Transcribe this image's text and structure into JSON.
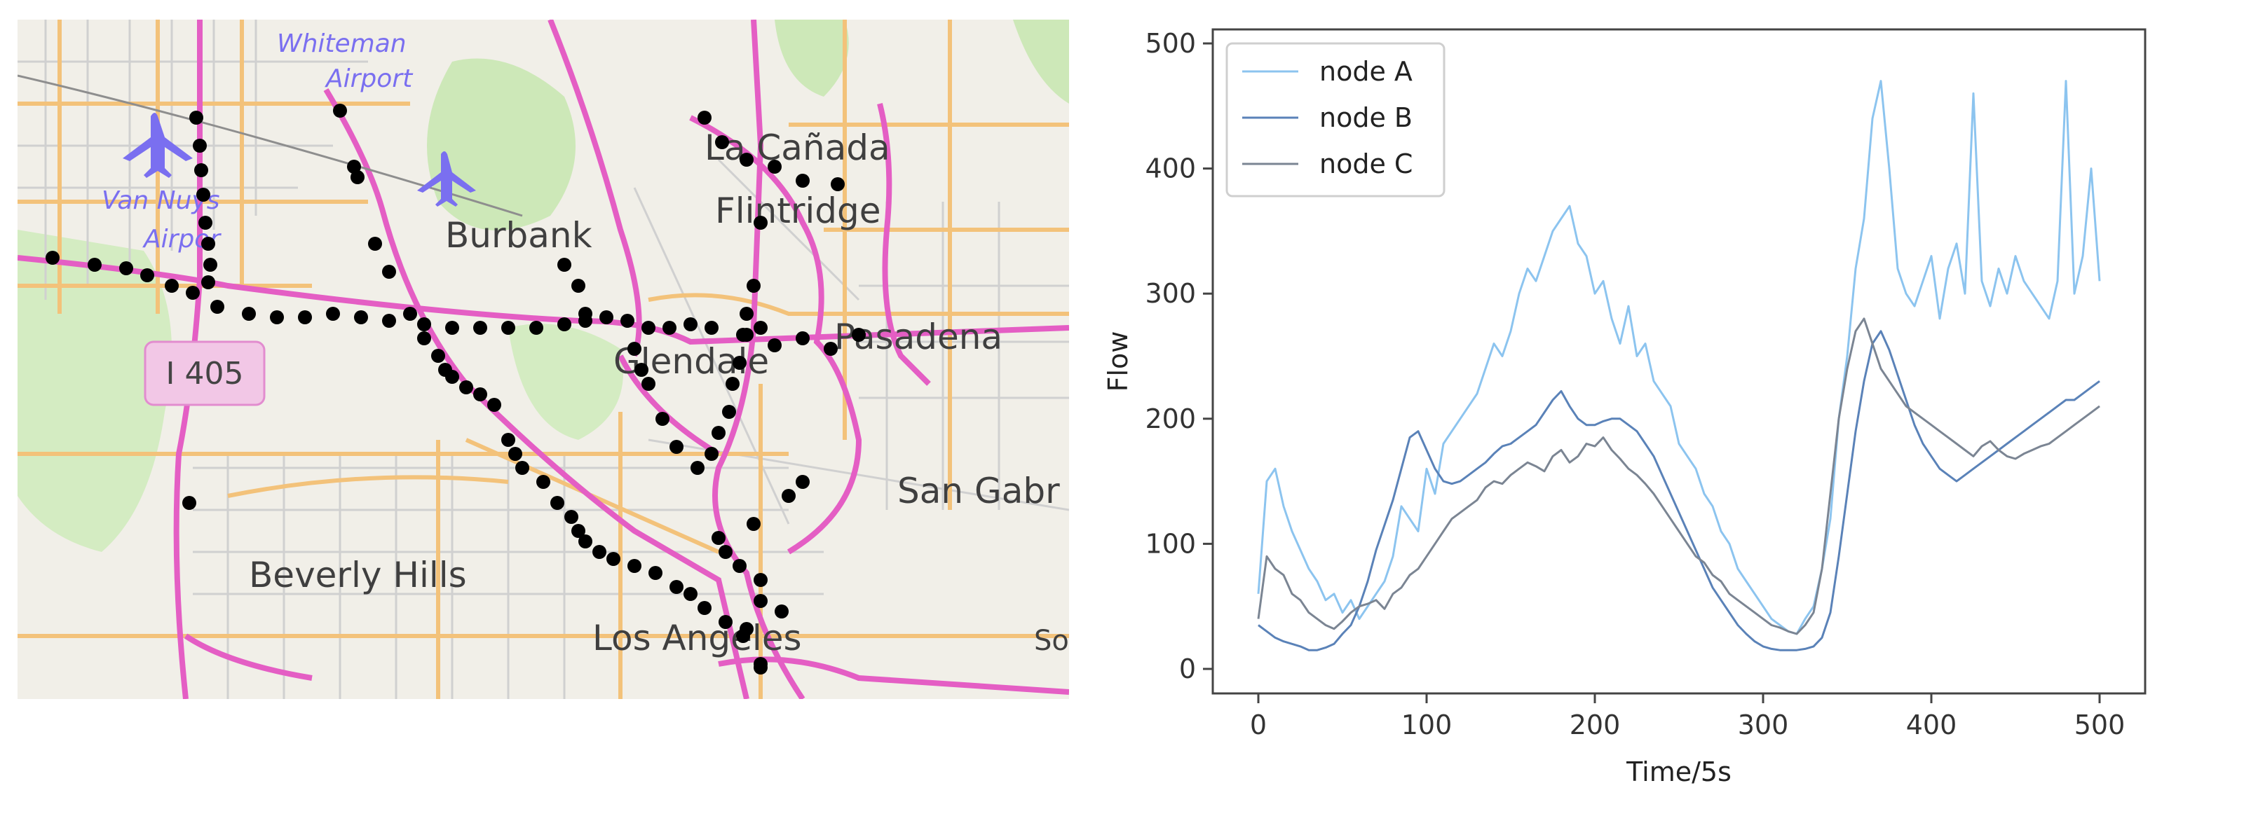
{
  "map": {
    "labels": {
      "whiteman": "Whiteman",
      "airport": "Airport",
      "van_nuys": "Van Nuys",
      "airpor": "Airpor",
      "burbank": "Burbank",
      "la_canada": "La Cañada",
      "flintridge": "Flintridge",
      "glendale": "Glendale",
      "pasadena": "Pasadena",
      "san_gabr": "San Gabr",
      "beverly_hills": "Beverly Hills",
      "los_angeles": "Los Angeles",
      "so": "So",
      "shield": "I 405"
    },
    "colors": {
      "background": "#f1efe8",
      "freeway": "#e45ec4",
      "major_road": "#f3c27a",
      "minor_road": "#cfcfcf",
      "park": "#cde8b8",
      "label_text": "#3f3f3f",
      "airport_text": "#7a6ff0",
      "node": "#000000"
    }
  },
  "chart_data": {
    "type": "line",
    "xlabel": "Time/5s",
    "ylabel": "Flow",
    "xlim": [
      0,
      500
    ],
    "ylim": [
      0,
      500
    ],
    "xticks": [
      0,
      100,
      200,
      300,
      400,
      500
    ],
    "yticks": [
      0,
      100,
      200,
      300,
      400,
      500
    ],
    "legend_position": "top-left",
    "series": [
      {
        "name": "node A",
        "color": "#8cc4ef",
        "x": [
          0,
          5,
          10,
          15,
          20,
          25,
          30,
          35,
          40,
          45,
          50,
          55,
          60,
          65,
          70,
          75,
          80,
          85,
          90,
          95,
          100,
          105,
          110,
          115,
          120,
          125,
          130,
          135,
          140,
          145,
          150,
          155,
          160,
          165,
          170,
          175,
          180,
          185,
          190,
          195,
          200,
          205,
          210,
          215,
          220,
          225,
          230,
          235,
          240,
          245,
          250,
          255,
          260,
          265,
          270,
          275,
          280,
          285,
          290,
          295,
          300,
          305,
          310,
          315,
          320,
          325,
          330,
          335,
          340,
          345,
          350,
          355,
          360,
          365,
          370,
          375,
          380,
          385,
          390,
          395,
          400,
          405,
          410,
          415,
          420,
          425,
          430,
          435,
          440,
          445,
          450,
          455,
          460,
          465,
          470,
          475,
          480,
          485,
          490,
          495,
          500
        ],
        "values": [
          60,
          150,
          160,
          130,
          110,
          95,
          80,
          70,
          55,
          60,
          45,
          55,
          40,
          50,
          60,
          70,
          90,
          130,
          120,
          110,
          160,
          140,
          180,
          190,
          200,
          210,
          220,
          240,
          260,
          250,
          270,
          300,
          320,
          310,
          330,
          350,
          360,
          370,
          340,
          330,
          300,
          310,
          280,
          260,
          290,
          250,
          260,
          230,
          220,
          210,
          180,
          170,
          160,
          140,
          130,
          110,
          100,
          80,
          70,
          60,
          50,
          40,
          35,
          30,
          28,
          40,
          50,
          80,
          120,
          200,
          250,
          320,
          360,
          440,
          470,
          400,
          320,
          300,
          290,
          310,
          330,
          280,
          320,
          340,
          300,
          460,
          310,
          290,
          320,
          300,
          330,
          310,
          300,
          290,
          280,
          310,
          470,
          300,
          330,
          400,
          310
        ]
      },
      {
        "name": "node B",
        "color": "#5a82b8",
        "x": [
          0,
          5,
          10,
          15,
          20,
          25,
          30,
          35,
          40,
          45,
          50,
          55,
          60,
          65,
          70,
          75,
          80,
          85,
          90,
          95,
          100,
          105,
          110,
          115,
          120,
          125,
          130,
          135,
          140,
          145,
          150,
          155,
          160,
          165,
          170,
          175,
          180,
          185,
          190,
          195,
          200,
          205,
          210,
          215,
          220,
          225,
          230,
          235,
          240,
          245,
          250,
          255,
          260,
          265,
          270,
          275,
          280,
          285,
          290,
          295,
          300,
          305,
          310,
          315,
          320,
          325,
          330,
          335,
          340,
          345,
          350,
          355,
          360,
          365,
          370,
          375,
          380,
          385,
          390,
          395,
          400,
          405,
          410,
          415,
          420,
          425,
          430,
          435,
          440,
          445,
          450,
          455,
          460,
          465,
          470,
          475,
          480,
          485,
          490,
          495,
          500
        ],
        "values": [
          35,
          30,
          25,
          22,
          20,
          18,
          15,
          15,
          17,
          20,
          28,
          35,
          50,
          70,
          95,
          115,
          135,
          160,
          185,
          190,
          175,
          160,
          150,
          148,
          150,
          155,
          160,
          165,
          172,
          178,
          180,
          185,
          190,
          195,
          205,
          215,
          222,
          210,
          200,
          195,
          195,
          198,
          200,
          200,
          195,
          190,
          180,
          170,
          155,
          140,
          125,
          110,
          95,
          80,
          65,
          55,
          45,
          35,
          28,
          22,
          18,
          16,
          15,
          15,
          15,
          16,
          18,
          25,
          45,
          90,
          140,
          190,
          230,
          260,
          270,
          255,
          235,
          215,
          195,
          180,
          170,
          160,
          155,
          150,
          155,
          160,
          165,
          170,
          175,
          180,
          185,
          190,
          195,
          200,
          205,
          210,
          215,
          215,
          220,
          225,
          230
        ]
      },
      {
        "name": "node C",
        "color": "#7b8593",
        "x": [
          0,
          5,
          10,
          15,
          20,
          25,
          30,
          35,
          40,
          45,
          50,
          55,
          60,
          65,
          70,
          75,
          80,
          85,
          90,
          95,
          100,
          105,
          110,
          115,
          120,
          125,
          130,
          135,
          140,
          145,
          150,
          155,
          160,
          165,
          170,
          175,
          180,
          185,
          190,
          195,
          200,
          205,
          210,
          215,
          220,
          225,
          230,
          235,
          240,
          245,
          250,
          255,
          260,
          265,
          270,
          275,
          280,
          285,
          290,
          295,
          300,
          305,
          310,
          315,
          320,
          325,
          330,
          335,
          340,
          345,
          350,
          355,
          360,
          365,
          370,
          375,
          380,
          385,
          390,
          395,
          400,
          405,
          410,
          415,
          420,
          425,
          430,
          435,
          440,
          445,
          450,
          455,
          460,
          465,
          470,
          475,
          480,
          485,
          490,
          495,
          500
        ],
        "values": [
          40,
          90,
          80,
          75,
          60,
          55,
          45,
          40,
          35,
          32,
          38,
          45,
          50,
          52,
          55,
          48,
          60,
          65,
          75,
          80,
          90,
          100,
          110,
          120,
          125,
          130,
          135,
          145,
          150,
          148,
          155,
          160,
          165,
          162,
          158,
          170,
          175,
          165,
          170,
          180,
          178,
          185,
          175,
          168,
          160,
          155,
          148,
          140,
          130,
          120,
          110,
          100,
          90,
          85,
          75,
          70,
          60,
          55,
          50,
          45,
          40,
          35,
          33,
          30,
          28,
          35,
          45,
          80,
          140,
          200,
          240,
          270,
          280,
          260,
          240,
          230,
          220,
          210,
          205,
          200,
          195,
          190,
          185,
          180,
          175,
          170,
          178,
          182,
          175,
          170,
          168,
          172,
          175,
          178,
          180,
          185,
          190,
          195,
          200,
          205,
          210
        ]
      }
    ]
  }
}
